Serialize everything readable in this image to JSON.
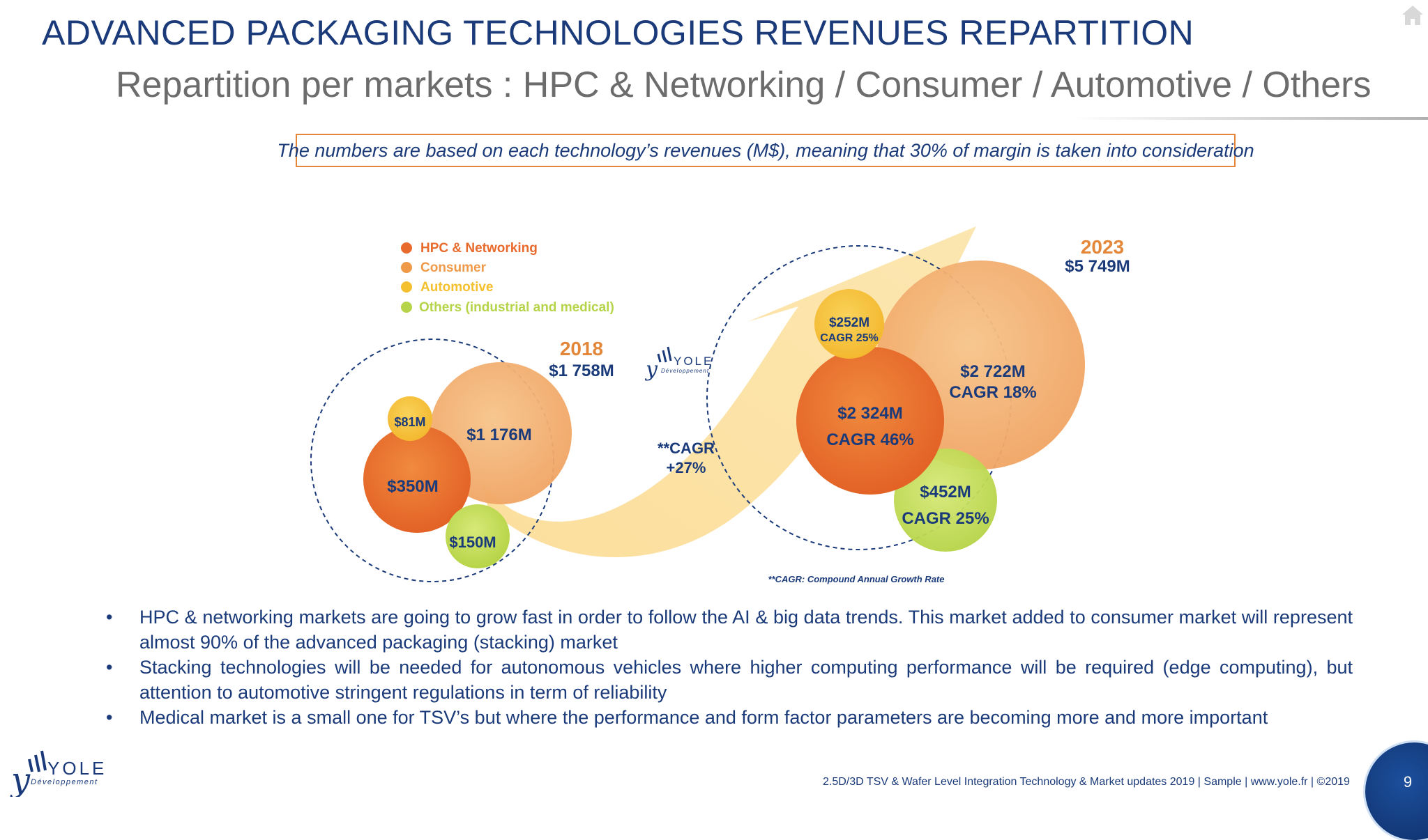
{
  "header": {
    "title": "ADVANCED PACKAGING TECHNOLOGIES REVENUES REPARTITION",
    "subtitle": "Repartition per markets : HPC & Networking / Consumer / Automotive / Others"
  },
  "note": "The numbers are based on each technology’s revenues (M$), meaning that 30% of margin is taken into consideration",
  "legend": [
    {
      "label": "HPC & Networking",
      "color": "#e86a2c"
    },
    {
      "label": "Consumer",
      "color": "#ef9a48"
    },
    {
      "label": "Automotive",
      "color": "#f5c02e"
    },
    {
      "label": "Others (industrial and medical)",
      "color": "#b5d44a"
    }
  ],
  "logo": {
    "text": "YOLE",
    "sub": "Développement"
  },
  "year2018": {
    "year": "2018",
    "total": "$1 758M",
    "hpc": "$350M",
    "consumer": "$1 176M",
    "automotive": "$81M",
    "others": "$150M"
  },
  "growth": {
    "line1": "**CAGR",
    "line2": "+27%"
  },
  "year2023": {
    "year": "2023",
    "total": "$5 749M",
    "hpc_value": "$2 324M",
    "hpc_cagr": "CAGR 46%",
    "consumer_value": "$2 722M",
    "consumer_cagr": "CAGR 18%",
    "automotive_value": "$252M",
    "automotive_cagr": "CAGR 25%",
    "others_value": "$452M",
    "others_cagr": "CAGR 25%"
  },
  "footnote": "**CAGR: Compound Annual Growth Rate",
  "bullets": [
    "HPC & networking markets are going to grow fast in order to follow the AI & big data trends. This market added to consumer market will represent almost 90% of the advanced packaging (stacking) market",
    "Stacking technologies will be needed for autonomous vehicles where higher computing performance will be required (edge computing), but attention to automotive stringent regulations in term of reliability",
    "Medical market is a small one for TSV’s but where the performance and form factor parameters are becoming more and more important"
  ],
  "footer": "2.5D/3D TSV & Wafer Level Integration Technology & Market updates 2019 | Sample | www.yole.fr | ©2019",
  "page_number": "9",
  "colors": {
    "navy": "#1a3a7a",
    "hpc": "#e86a2c",
    "consumer": "#ef9a48",
    "automotive": "#f5c02e",
    "others": "#b5d44a",
    "arrow": "#fbd98a",
    "year": "#e3873a"
  }
}
